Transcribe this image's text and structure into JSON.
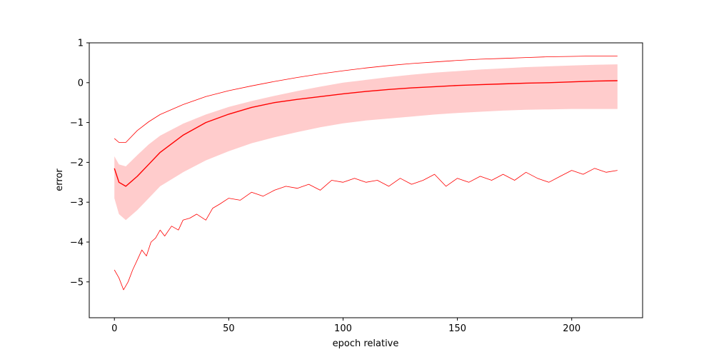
{
  "chart_data": {
    "type": "line",
    "title": "",
    "xlabel": "epoch relative",
    "ylabel": "error",
    "xlim": [
      -11,
      231
    ],
    "ylim": [
      -5.9,
      1.0
    ],
    "xticks": [
      0,
      50,
      100,
      150,
      200
    ],
    "yticks": [
      1,
      0,
      -1,
      -2,
      -3,
      -4,
      -5
    ],
    "tick_labels_x": [
      "0",
      "50",
      "100",
      "150",
      "200"
    ],
    "tick_labels_y": [
      "1",
      "0",
      "−1",
      "−2",
      "−3",
      "−4",
      "−5"
    ],
    "grid": false,
    "legend": "none",
    "colors": {
      "line": "#ff0000",
      "band": "#ff9999"
    },
    "band": {
      "x": [
        0,
        2,
        5,
        10,
        15,
        20,
        30,
        40,
        50,
        60,
        70,
        80,
        90,
        100,
        110,
        120,
        130,
        140,
        150,
        160,
        170,
        180,
        190,
        200,
        210,
        220
      ],
      "lower": [
        -2.9,
        -3.3,
        -3.45,
        -3.2,
        -2.9,
        -2.6,
        -2.25,
        -1.95,
        -1.72,
        -1.52,
        -1.37,
        -1.24,
        -1.12,
        -1.02,
        -0.95,
        -0.9,
        -0.85,
        -0.8,
        -0.76,
        -0.73,
        -0.7,
        -0.68,
        -0.67,
        -0.66,
        -0.66,
        -0.66
      ],
      "upper": [
        -1.85,
        -2.05,
        -2.1,
        -1.82,
        -1.55,
        -1.33,
        -1.03,
        -0.8,
        -0.61,
        -0.46,
        -0.33,
        -0.21,
        -0.1,
        0.0,
        0.07,
        0.14,
        0.2,
        0.25,
        0.29,
        0.33,
        0.36,
        0.39,
        0.41,
        0.43,
        0.45,
        0.46
      ]
    },
    "series": [
      {
        "x": [
          0,
          2,
          5,
          10,
          15,
          20,
          30,
          40,
          50,
          60,
          70,
          80,
          90,
          100,
          110,
          120,
          130,
          140,
          150,
          160,
          170,
          180,
          190,
          200,
          210,
          220
        ],
        "values": [
          -2.15,
          -2.5,
          -2.6,
          -2.35,
          -2.05,
          -1.75,
          -1.32,
          -1.0,
          -0.79,
          -0.62,
          -0.5,
          -0.42,
          -0.35,
          -0.28,
          -0.22,
          -0.17,
          -0.13,
          -0.1,
          -0.07,
          -0.05,
          -0.03,
          -0.01,
          0.0,
          0.02,
          0.04,
          0.05
        ]
      },
      {
        "x": [
          0,
          2,
          5,
          10,
          15,
          20,
          30,
          40,
          50,
          60,
          70,
          80,
          90,
          100,
          110,
          120,
          130,
          140,
          150,
          160,
          170,
          180,
          190,
          200,
          210,
          220
        ],
        "values": [
          -1.4,
          -1.5,
          -1.5,
          -1.2,
          -0.98,
          -0.8,
          -0.55,
          -0.35,
          -0.2,
          -0.08,
          0.03,
          0.13,
          0.22,
          0.3,
          0.37,
          0.43,
          0.48,
          0.52,
          0.56,
          0.59,
          0.61,
          0.63,
          0.65,
          0.66,
          0.67,
          0.67
        ]
      },
      {
        "x": [
          0,
          2,
          4,
          6,
          8,
          10,
          12,
          14,
          16,
          18,
          20,
          22,
          25,
          28,
          30,
          33,
          36,
          40,
          43,
          46,
          50,
          55,
          60,
          65,
          70,
          75,
          80,
          85,
          90,
          95,
          100,
          105,
          110,
          115,
          120,
          125,
          130,
          135,
          140,
          145,
          150,
          155,
          160,
          165,
          170,
          175,
          180,
          185,
          190,
          195,
          200,
          205,
          210,
          215,
          220
        ],
        "values": [
          -4.7,
          -4.9,
          -5.2,
          -5.0,
          -4.7,
          -4.45,
          -4.2,
          -4.35,
          -4.0,
          -3.9,
          -3.7,
          -3.85,
          -3.6,
          -3.7,
          -3.45,
          -3.4,
          -3.3,
          -3.45,
          -3.15,
          -3.05,
          -2.9,
          -2.95,
          -2.75,
          -2.85,
          -2.7,
          -2.6,
          -2.65,
          -2.55,
          -2.7,
          -2.45,
          -2.5,
          -2.4,
          -2.5,
          -2.45,
          -2.6,
          -2.4,
          -2.55,
          -2.45,
          -2.3,
          -2.6,
          -2.4,
          -2.5,
          -2.35,
          -2.45,
          -2.3,
          -2.45,
          -2.25,
          -2.4,
          -2.5,
          -2.35,
          -2.2,
          -2.3,
          -2.15,
          -2.25,
          -2.2
        ]
      }
    ]
  }
}
